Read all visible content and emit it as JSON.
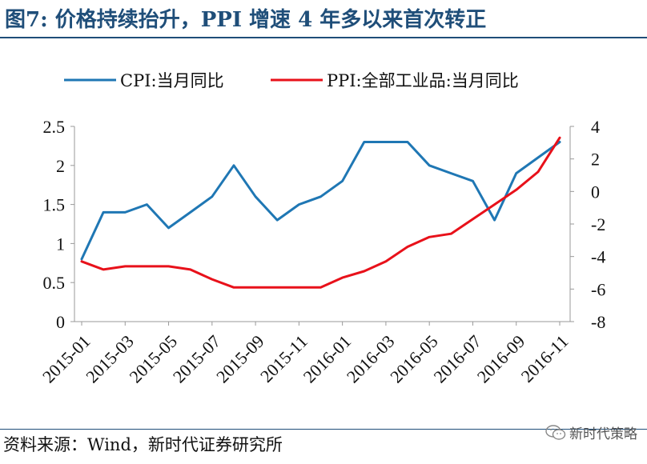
{
  "header": {
    "title": "图7:  价格持续抬升，PPI 增速 4 年多以来首次转正"
  },
  "footer": {
    "source": "资料来源：Wind，新时代证券研究所",
    "watermark_text": "新时代策略",
    "watermark_icon": "wechat-icon"
  },
  "chart_data": {
    "type": "line",
    "title": "",
    "xlabel": "",
    "ylabel": "",
    "categories": [
      "2015-01",
      "2015-02",
      "2015-03",
      "2015-04",
      "2015-05",
      "2015-06",
      "2015-07",
      "2015-08",
      "2015-09",
      "2015-10",
      "2015-11",
      "2015-12",
      "2016-01",
      "2016-02",
      "2016-03",
      "2016-04",
      "2016-05",
      "2016-06",
      "2016-07",
      "2016-08",
      "2016-09",
      "2016-10",
      "2016-11"
    ],
    "x_tick_labels": [
      "2015-01",
      "2015-03",
      "2015-05",
      "2015-07",
      "2015-09",
      "2015-11",
      "2016-01",
      "2016-03",
      "2016-05",
      "2016-07",
      "2016-09",
      "2016-11"
    ],
    "ylim_left": [
      0,
      2.5
    ],
    "yticks_left": [
      "2.5",
      "2",
      "1.5",
      "1",
      "0.5",
      "0"
    ],
    "ylim_right": [
      -8,
      4
    ],
    "yticks_right": [
      "4",
      "2",
      "0",
      "-2",
      "-4",
      "-6",
      "-8"
    ],
    "grid": false,
    "legend_position": "top",
    "series": [
      {
        "name": "CPI:当月同比",
        "axis": "left",
        "color": "#1f77b4",
        "values": [
          0.8,
          1.4,
          1.4,
          1.5,
          1.2,
          1.4,
          1.6,
          2.0,
          1.6,
          1.3,
          1.5,
          1.6,
          1.8,
          2.3,
          2.3,
          2.3,
          2.0,
          1.9,
          1.8,
          1.3,
          1.9,
          2.1,
          2.3
        ]
      },
      {
        "name": "PPI:全部工业品:当月同比",
        "axis": "right",
        "color": "#e8111a",
        "values": [
          -4.3,
          -4.8,
          -4.6,
          -4.6,
          -4.6,
          -4.8,
          -5.4,
          -5.9,
          -5.9,
          -5.9,
          -5.9,
          -5.9,
          -5.3,
          -4.9,
          -4.3,
          -3.4,
          -2.8,
          -2.6,
          -1.7,
          -0.8,
          0.1,
          1.2,
          3.3
        ]
      }
    ]
  },
  "colors": {
    "title": "#1f4e79",
    "cpi": "#1f77b4",
    "ppi": "#e8111a",
    "axis": "#999999"
  }
}
